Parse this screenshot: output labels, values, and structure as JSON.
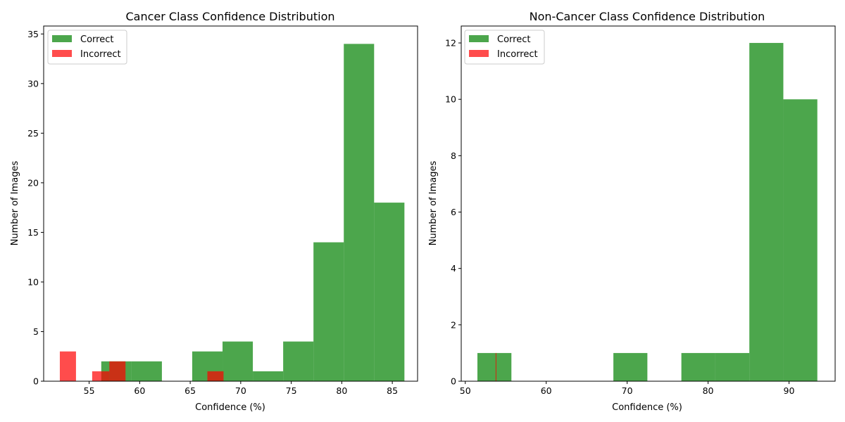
{
  "colors": {
    "correct": "#008000",
    "incorrect": "#ff0000",
    "axis": "#000000"
  },
  "chart_data": [
    {
      "type": "histogram",
      "title": "Cancer Class Confidence Distribution",
      "xlabel": "Confidence (%)",
      "ylabel": "Number of Images",
      "xlim": [
        50.5,
        87.5
      ],
      "ylim": [
        0,
        35.8
      ],
      "xticks": [
        55,
        60,
        65,
        70,
        75,
        80,
        85
      ],
      "yticks": [
        0,
        5,
        10,
        15,
        20,
        25,
        30,
        35
      ],
      "legend": {
        "location": "upper-left",
        "entries": [
          "Correct",
          "Incorrect"
        ]
      },
      "series": [
        {
          "name": "Correct",
          "color": "#008000",
          "opacity": 0.7,
          "bins": [
            {
              "start": 56.2,
              "end": 59.2,
              "count": 2
            },
            {
              "start": 59.2,
              "end": 62.2,
              "count": 2
            },
            {
              "start": 62.2,
              "end": 65.2,
              "count": 0
            },
            {
              "start": 65.2,
              "end": 68.2,
              "count": 3
            },
            {
              "start": 68.2,
              "end": 71.2,
              "count": 4
            },
            {
              "start": 71.2,
              "end": 74.2,
              "count": 1
            },
            {
              "start": 74.2,
              "end": 77.2,
              "count": 4
            },
            {
              "start": 77.2,
              "end": 80.2,
              "count": 14
            },
            {
              "start": 80.2,
              "end": 83.2,
              "count": 34
            },
            {
              "start": 83.2,
              "end": 86.2,
              "count": 18
            }
          ]
        },
        {
          "name": "Incorrect",
          "color": "#ff0000",
          "opacity": 0.7,
          "bins": [
            {
              "start": 52.1,
              "end": 53.7,
              "count": 3
            },
            {
              "start": 53.7,
              "end": 55.3,
              "count": 0
            },
            {
              "start": 55.3,
              "end": 57.0,
              "count": 1
            },
            {
              "start": 57.0,
              "end": 58.6,
              "count": 2
            },
            {
              "start": 58.6,
              "end": 60.2,
              "count": 0
            },
            {
              "start": 60.2,
              "end": 61.8,
              "count": 0
            },
            {
              "start": 61.8,
              "end": 63.4,
              "count": 0
            },
            {
              "start": 63.4,
              "end": 65.1,
              "count": 0
            },
            {
              "start": 65.1,
              "end": 66.7,
              "count": 0
            },
            {
              "start": 66.7,
              "end": 68.3,
              "count": 1
            }
          ]
        }
      ]
    },
    {
      "type": "histogram",
      "title": "Non-Cancer Class Confidence Distribution",
      "xlabel": "Confidence (%)",
      "ylabel": "Number of Images",
      "xlim": [
        49.5,
        95.7
      ],
      "ylim": [
        0,
        12.6
      ],
      "xticks": [
        50,
        60,
        70,
        80,
        90
      ],
      "yticks": [
        0,
        2,
        4,
        6,
        8,
        10,
        12
      ],
      "legend": {
        "location": "upper-left",
        "entries": [
          "Correct",
          "Incorrect"
        ]
      },
      "series": [
        {
          "name": "Correct",
          "color": "#008000",
          "opacity": 0.7,
          "bins": [
            {
              "start": 51.5,
              "end": 55.7,
              "count": 1
            },
            {
              "start": 55.7,
              "end": 59.9,
              "count": 0
            },
            {
              "start": 59.9,
              "end": 64.1,
              "count": 0
            },
            {
              "start": 64.1,
              "end": 68.3,
              "count": 0
            },
            {
              "start": 68.3,
              "end": 72.5,
              "count": 1
            },
            {
              "start": 72.5,
              "end": 76.7,
              "count": 0
            },
            {
              "start": 76.7,
              "end": 80.9,
              "count": 1
            },
            {
              "start": 80.9,
              "end": 85.1,
              "count": 1
            },
            {
              "start": 85.1,
              "end": 89.3,
              "count": 12
            },
            {
              "start": 89.3,
              "end": 93.5,
              "count": 10
            }
          ]
        },
        {
          "name": "Incorrect",
          "color": "#ff0000",
          "opacity": 0.7,
          "bins": [
            {
              "start": 53.75,
              "end": 53.85,
              "count": 1
            }
          ]
        }
      ]
    }
  ]
}
